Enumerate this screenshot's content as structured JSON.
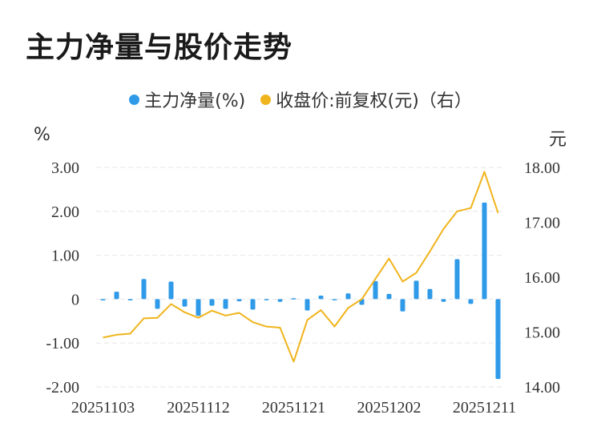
{
  "chart_data": {
    "type": "bar+line",
    "title": "主力净量与股价走势",
    "legend": [
      {
        "label": "主力净量(%)",
        "color": "#2f9ae8"
      },
      {
        "label": "收盘价:前复权(元)（右）",
        "color": "#f0b41c"
      }
    ],
    "left_axis": {
      "unit": "%",
      "ticks": [
        "3.00",
        "2.00",
        "1.00",
        "0",
        "-1.00",
        "-2.00"
      ],
      "ylim": [
        -2,
        3
      ]
    },
    "right_axis": {
      "unit": "元",
      "ticks": [
        "18.00",
        "17.00",
        "16.00",
        "15.00",
        "14.00"
      ],
      "ylim": [
        14,
        18
      ]
    },
    "x_tick_labels": [
      "20251103",
      "20251112",
      "20251121",
      "20251202",
      "20251211"
    ],
    "x_tick_indices": [
      0,
      7,
      14,
      21,
      28
    ],
    "colors": {
      "bar": "#2f9ae8",
      "line": "#f0b41c",
      "grid": "#e6e6e6"
    },
    "series": [
      {
        "name": "主力净量(%)",
        "type": "bar",
        "values": [
          -0.03,
          0.17,
          -0.03,
          0.46,
          -0.22,
          0.4,
          -0.17,
          -0.38,
          -0.15,
          -0.22,
          -0.05,
          -0.24,
          0.0,
          -0.06,
          0.02,
          -0.26,
          0.08,
          0.0,
          0.13,
          -0.13,
          0.41,
          0.12,
          -0.28,
          0.42,
          0.23,
          -0.06,
          0.91,
          -0.11,
          2.2,
          -1.82
        ]
      },
      {
        "name": "收盘价:前复权(元)（右）",
        "type": "line",
        "values": [
          14.9,
          14.95,
          14.97,
          15.25,
          15.26,
          15.51,
          15.36,
          15.26,
          15.39,
          15.3,
          15.35,
          15.18,
          15.1,
          15.08,
          14.46,
          15.22,
          15.4,
          15.1,
          15.44,
          15.6,
          15.97,
          16.34,
          15.92,
          16.08,
          16.47,
          16.88,
          17.2,
          17.26,
          17.92,
          17.17
        ]
      }
    ]
  }
}
